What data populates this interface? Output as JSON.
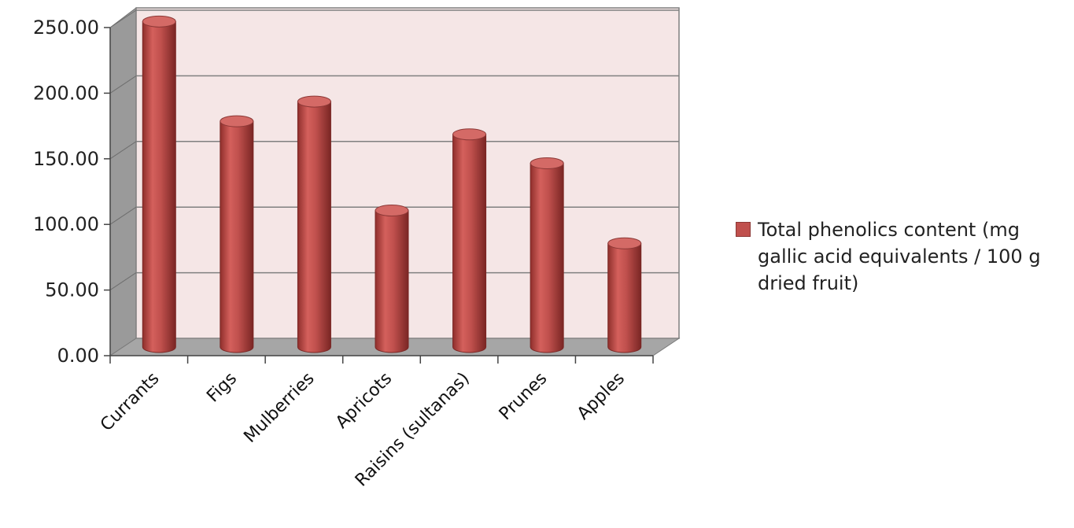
{
  "chart_data": {
    "type": "bar",
    "style": "3d-cylinder",
    "categories": [
      "Currants",
      "Figs",
      "Mulberries",
      "Apricots",
      "Raisins (sultanas)",
      "Prunes",
      "Apples"
    ],
    "series": [
      {
        "name": "Total phenolics content (mg gallic acid equivalents / 100 g dried fruit)",
        "values": [
          248,
          172,
          187,
          104,
          162,
          140,
          79
        ],
        "color": "#c0504d"
      }
    ],
    "yticks": [
      "0.00",
      "50.00",
      "100.00",
      "150.00",
      "200.00",
      "250.00"
    ],
    "ylim": [
      0,
      250
    ],
    "title": "",
    "xlabel": "",
    "ylabel": "",
    "grid": true,
    "legend_position": "right",
    "colors": {
      "wall": "#f5e6e6",
      "floor": "#a6a6a6",
      "side_wall": "#9a9a9a",
      "grid": "#808080"
    }
  }
}
